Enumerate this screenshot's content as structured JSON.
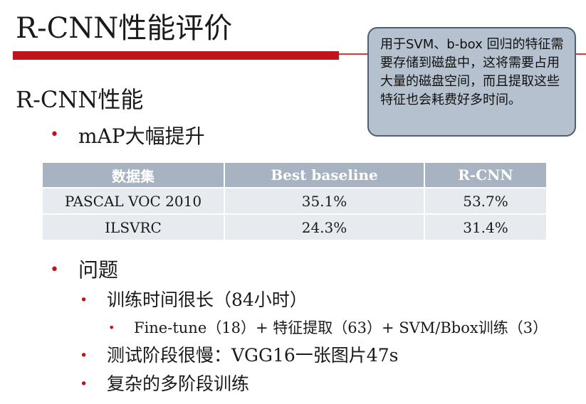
{
  "slide": {
    "title": "R-CNN性能评价",
    "callout": "用于SVM、b-box 回归的特征需要存储到磁盘中，这将需要占用大量的磁盘空间，而且提取这些特征也会耗费好多时间。",
    "section_heading": "R-CNN性能",
    "bullet_marker": "•",
    "bullets": [
      {
        "text": "mAP大幅提升"
      },
      {
        "text": "问题"
      },
      {
        "text": "训练时间很长（84小时）"
      },
      {
        "text": "Fine-tune（18）+ 特征提取（63）+ SVM/Bbox训练（3）"
      },
      {
        "text": "测试阶段很慢：VGG16一张图片47s"
      },
      {
        "text": "复杂的多阶段训练"
      }
    ]
  },
  "table": {
    "headers": [
      "数据集",
      "Best baseline",
      "R-CNN"
    ],
    "rows": [
      [
        "PASCAL VOC 2010",
        "35.1%",
        "53.7%"
      ],
      [
        "ILSVRC",
        "24.3%",
        "31.4%"
      ]
    ]
  },
  "colors": {
    "accent_red": "#c0141b",
    "callout_fill": "#b5c1cf",
    "table_header": "#a8b3c1",
    "table_row": "#e7ebef"
  }
}
